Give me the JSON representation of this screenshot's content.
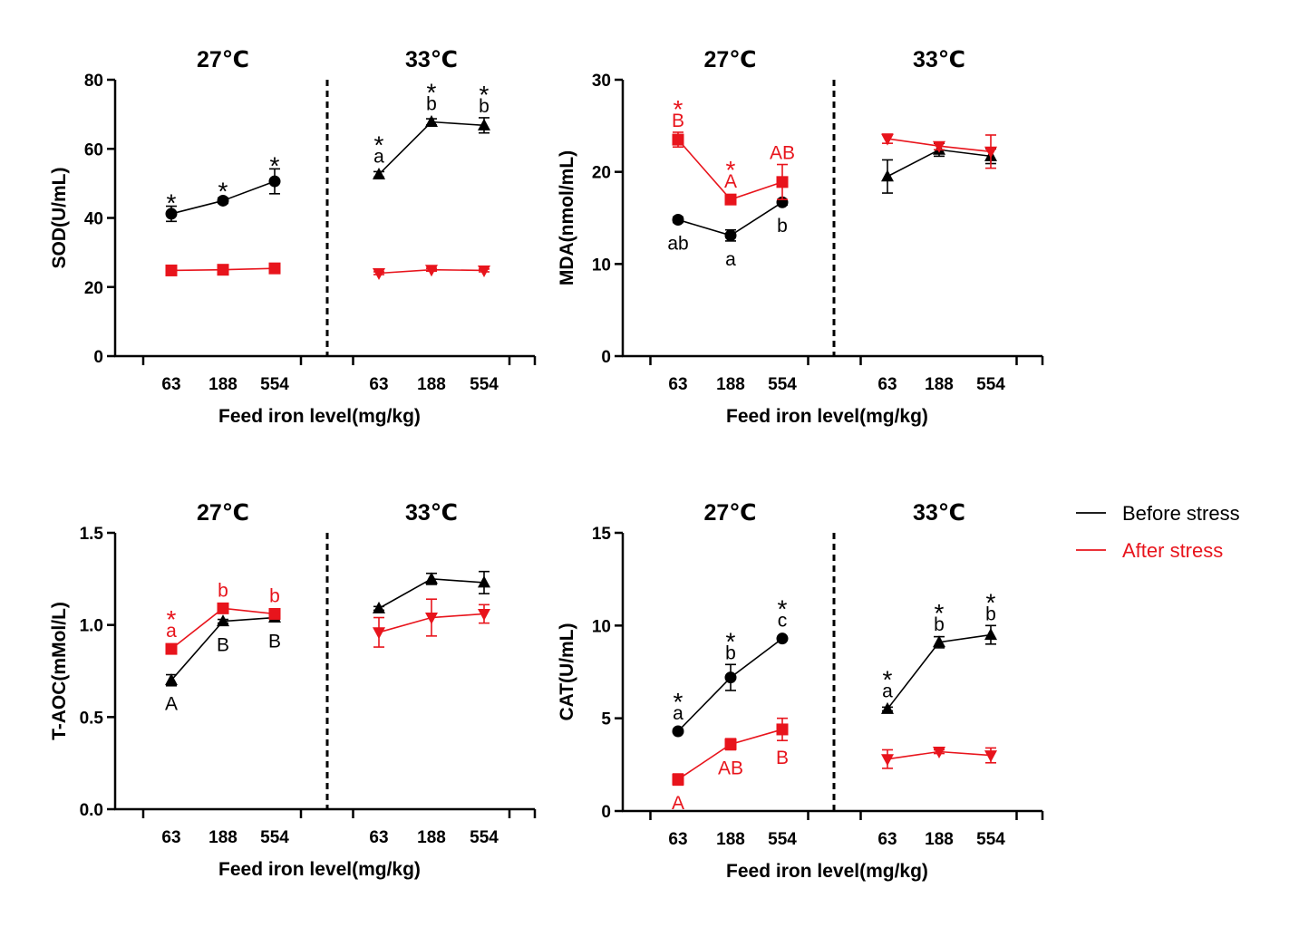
{
  "legend": [
    {
      "name": "Before stress",
      "color": "#000000"
    },
    {
      "name": "After stress",
      "color": "#e8141c"
    }
  ],
  "chart_data": [
    {
      "type": "line",
      "panel": "top-left",
      "ylabel": "SOD(U/mL)",
      "xlabel": "Feed iron level(mg/kg)",
      "ylim": [
        0,
        80
      ],
      "yticks": [
        0,
        20,
        40,
        60,
        80
      ],
      "ytick_labels": [
        "0",
        "20",
        "40",
        "60",
        "80"
      ],
      "groups": [
        {
          "title": "27℃",
          "categories": [
            "63",
            "188",
            "554"
          ],
          "series": [
            {
              "name": "Before stress",
              "marker": "circle",
              "values": [
                41.2,
                45.0,
                50.6
              ],
              "errors": [
                2.2,
                0.8,
                3.6
              ],
              "labels": [
                [
                  "*"
                ],
                [
                  "*"
                ],
                [
                  "*"
                ]
              ]
            },
            {
              "name": "After stress",
              "marker": "square",
              "values": [
                24.8,
                25.0,
                25.4
              ],
              "errors": [
                0.5,
                0.5,
                0.6
              ],
              "labels": [
                [],
                [],
                []
              ]
            }
          ]
        },
        {
          "title": "33℃",
          "categories": [
            "63",
            "188",
            "554"
          ],
          "series": [
            {
              "name": "Before stress",
              "marker": "triangle-up",
              "values": [
                52.6,
                67.8,
                66.8
              ],
              "errors": [
                0.8,
                0.9,
                2.2
              ],
              "labels": [
                [
                  "*",
                  "a"
                ],
                [
                  "*",
                  "b"
                ],
                [
                  "*",
                  "b"
                ]
              ]
            },
            {
              "name": "After stress",
              "marker": "triangle-down",
              "values": [
                24.0,
                25.0,
                24.8
              ],
              "errors": [
                0.4,
                0.4,
                0.4
              ],
              "labels": [
                [],
                [],
                []
              ]
            }
          ]
        }
      ]
    },
    {
      "type": "line",
      "panel": "top-right",
      "ylabel": "MDA(nmol/mL)",
      "xlabel": "Feed iron level(mg/kg)",
      "ylim": [
        0,
        30
      ],
      "yticks": [
        0,
        10,
        20,
        30
      ],
      "ytick_labels": [
        "0",
        "10",
        "20",
        "30"
      ],
      "groups": [
        {
          "title": "27℃",
          "categories": [
            "63",
            "188",
            "554"
          ],
          "series": [
            {
              "name": "Before stress",
              "marker": "circle",
              "values": [
                14.8,
                13.1,
                16.7
              ],
              "errors": [
                0.3,
                0.6,
                0.3
              ],
              "labels": [
                [
                  "ab"
                ],
                [
                  "a"
                ],
                [
                  "b"
                ]
              ],
              "label_pos": "below"
            },
            {
              "name": "After stress",
              "marker": "square",
              "values": [
                23.5,
                17.0,
                18.9
              ],
              "errors": [
                0.8,
                0.3,
                1.9
              ],
              "labels": [
                [
                  "*",
                  "B"
                ],
                [
                  "*",
                  "A"
                ],
                [
                  "AB"
                ]
              ]
            }
          ]
        },
        {
          "title": "33℃",
          "categories": [
            "63",
            "188",
            "554"
          ],
          "series": [
            {
              "name": "Before stress",
              "marker": "triangle-up",
              "values": [
                19.5,
                22.4,
                21.7
              ],
              "errors": [
                1.8,
                0.7,
                0.8
              ],
              "labels": [
                [],
                [],
                []
              ]
            },
            {
              "name": "After stress",
              "marker": "triangle-down",
              "values": [
                23.6,
                22.8,
                22.2
              ],
              "errors": [
                0.5,
                0.4,
                1.8
              ],
              "labels": [
                [],
                [],
                []
              ]
            }
          ]
        }
      ]
    },
    {
      "type": "line",
      "panel": "bottom-left",
      "ylabel": "T-AOC(mMol/L)",
      "xlabel": "Feed iron level(mg/kg)",
      "ylim": [
        0,
        1.5
      ],
      "yticks": [
        0,
        0.5,
        1.0,
        1.5
      ],
      "ytick_labels": [
        "0.0",
        "0.5",
        "1.0",
        "1.5"
      ],
      "groups": [
        {
          "title": "27℃",
          "categories": [
            "63",
            "188",
            "554"
          ],
          "series": [
            {
              "name": "Before stress",
              "marker": "triangle-up",
              "values": [
                0.7,
                1.02,
                1.04
              ],
              "errors": [
                0.03,
                0.01,
                0.01
              ],
              "labels": [
                [
                  "A"
                ],
                [
                  "B"
                ],
                [
                  "B"
                ]
              ],
              "label_pos": "below"
            },
            {
              "name": "After stress",
              "marker": "square",
              "values": [
                0.87,
                1.09,
                1.06
              ],
              "errors": [
                0.01,
                0.01,
                0.01
              ],
              "labels": [
                [
                  "*",
                  "a"
                ],
                [
                  "b"
                ],
                [
                  "b"
                ]
              ]
            }
          ]
        },
        {
          "title": "33℃",
          "categories": [
            "63",
            "188",
            "554"
          ],
          "series": [
            {
              "name": "Before stress",
              "marker": "triangle-up",
              "values": [
                1.09,
                1.25,
                1.23
              ],
              "errors": [
                0.01,
                0.03,
                0.06
              ],
              "labels": [
                [],
                [],
                []
              ]
            },
            {
              "name": "After stress",
              "marker": "triangle-down",
              "values": [
                0.96,
                1.04,
                1.06
              ],
              "errors": [
                0.08,
                0.1,
                0.05
              ],
              "labels": [
                [],
                [],
                []
              ]
            }
          ]
        }
      ]
    },
    {
      "type": "line",
      "panel": "bottom-right",
      "ylabel": "CAT(U/mL)",
      "xlabel": "Feed iron level(mg/kg)",
      "ylim": [
        0,
        15
      ],
      "yticks": [
        0,
        5,
        10,
        15
      ],
      "ytick_labels": [
        "0",
        "5",
        "10",
        "15"
      ],
      "groups": [
        {
          "title": "27℃",
          "categories": [
            "63",
            "188",
            "554"
          ],
          "series": [
            {
              "name": "Before stress",
              "marker": "circle",
              "values": [
                4.3,
                7.2,
                9.3
              ],
              "errors": [
                0.1,
                0.7,
                0.1
              ],
              "labels": [
                [
                  "*",
                  "a"
                ],
                [
                  "*",
                  "b"
                ],
                [
                  "*",
                  "c"
                ]
              ]
            },
            {
              "name": "After stress",
              "marker": "square",
              "values": [
                1.7,
                3.6,
                4.4
              ],
              "errors": [
                0.3,
                0.3,
                0.6
              ],
              "labels": [
                [
                  "A"
                ],
                [
                  "AB"
                ],
                [
                  "B"
                ]
              ],
              "label_pos": "below"
            }
          ]
        },
        {
          "title": "33℃",
          "categories": [
            "63",
            "188",
            "554"
          ],
          "series": [
            {
              "name": "Before stress",
              "marker": "triangle-up",
              "values": [
                5.5,
                9.1,
                9.5
              ],
              "errors": [
                0.1,
                0.3,
                0.5
              ],
              "labels": [
                [
                  "*",
                  "a"
                ],
                [
                  "*",
                  "b"
                ],
                [
                  "*",
                  "b"
                ]
              ]
            },
            {
              "name": "After stress",
              "marker": "triangle-down",
              "values": [
                2.8,
                3.2,
                3.0
              ],
              "errors": [
                0.5,
                0.1,
                0.4
              ],
              "labels": [
                [],
                [],
                []
              ]
            }
          ]
        }
      ]
    }
  ]
}
